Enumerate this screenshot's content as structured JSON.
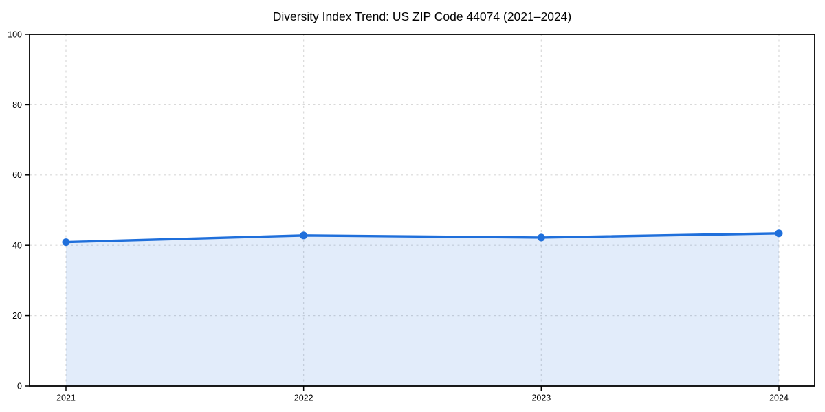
{
  "chart_data": {
    "type": "line",
    "title": "Diversity Index Trend: US ZIP Code 44074 (2021–2024)",
    "x": [
      "2021",
      "2022",
      "2023",
      "2024"
    ],
    "series": [
      {
        "name": "Diversity Index",
        "values": [
          40.9,
          42.8,
          42.2,
          43.4
        ]
      }
    ],
    "xlabel": "",
    "ylabel": "",
    "ylim": [
      0,
      100
    ],
    "yticks": [
      0,
      20,
      40,
      60,
      80,
      100
    ],
    "grid": true,
    "grid_style": "dashed",
    "area_fill": true,
    "legend": "none",
    "colors": {
      "line": "#1f6fdb",
      "marker": "#1f6fdb",
      "area": "rgba(31, 111, 219, 0.13)",
      "grid": "#d9d9d9",
      "axis": "#000000",
      "text": "#000000",
      "background": "#ffffff"
    }
  }
}
